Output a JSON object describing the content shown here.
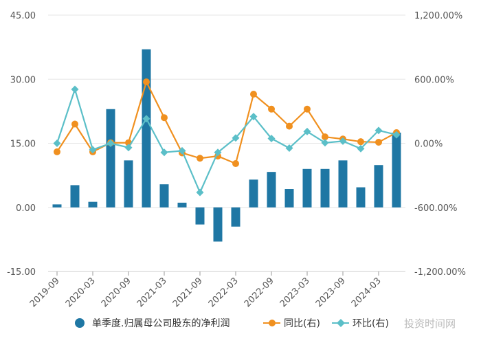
{
  "chart_data": {
    "type": "bar+line",
    "x": [
      "2019-09",
      "2019-12",
      "2020-03",
      "2020-06",
      "2020-09",
      "2020-12",
      "2021-03",
      "2021-06",
      "2021-09",
      "2021-12",
      "2022-03",
      "2022-06",
      "2022-09",
      "2022-12",
      "2023-03",
      "2023-06",
      "2023-09",
      "2023-12",
      "2024-03",
      "2024-06"
    ],
    "x_tick_labels": [
      "2019-09",
      "2020-03",
      "2020-09",
      "2021-03",
      "2021-09",
      "2022-03",
      "2022-09",
      "2023-03",
      "2023-09",
      "2024-03"
    ],
    "y_left": {
      "ticks": [
        "45.00",
        "30.00",
        "15.00",
        "0.00",
        "-15.00"
      ],
      "range": [
        -15,
        45
      ]
    },
    "y_right": {
      "ticks": [
        "1,200.00%",
        "600.00%",
        "0.00%",
        "-600.00%",
        "-1,200.00%"
      ],
      "range": [
        -1200,
        1200
      ]
    },
    "series": [
      {
        "name": "单季度.归属母公司股东的净利润",
        "type": "bar",
        "axis": "left",
        "color": "#1f77a4",
        "values": [
          0.7,
          5.2,
          1.3,
          23.0,
          11.0,
          37.0,
          5.4,
          1.1,
          -4.0,
          -8.0,
          -4.5,
          6.5,
          8.3,
          4.3,
          9.0,
          9.0,
          11.0,
          4.7,
          9.9,
          17.5
        ]
      },
      {
        "name": "同比(右)",
        "type": "line",
        "axis": "right",
        "color": "#f0901f",
        "values": [
          -80,
          180,
          -80,
          5,
          5,
          575,
          240,
          -90,
          -140,
          -120,
          -190,
          460,
          320,
          160,
          320,
          60,
          40,
          15,
          10,
          100
        ]
      },
      {
        "name": "环比(右)",
        "type": "line",
        "axis": "right",
        "color": "#5bbfc8",
        "values": [
          0,
          505,
          -60,
          0,
          -40,
          230,
          -85,
          -70,
          -460,
          -85,
          50,
          250,
          45,
          -45,
          110,
          5,
          20,
          -50,
          120,
          80
        ]
      }
    ],
    "legend": [
      "单季度.归属母公司股东的净利润",
      "同比(右)",
      "环比(右)"
    ],
    "legend_position": "bottom"
  },
  "watermark": "投资时间网"
}
